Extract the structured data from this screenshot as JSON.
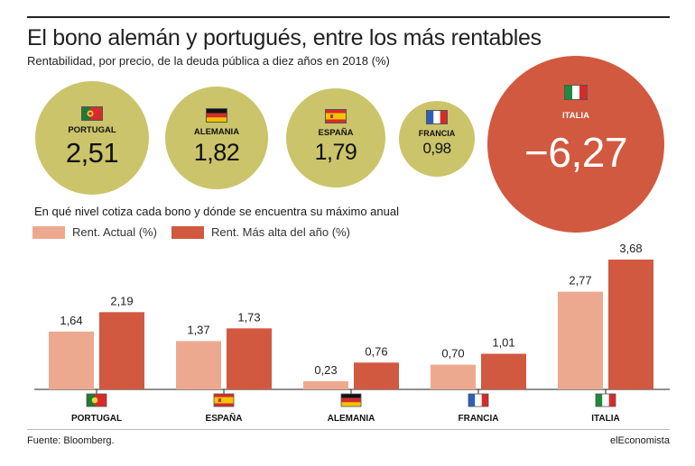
{
  "header": {
    "title": "El bono alemán y portugués, entre los más rentables",
    "subtitle": "Rentabilidad, por precio, de la deuda pública a diez años en 2018 (%)"
  },
  "bubbles": [
    {
      "country": "PORTUGAL",
      "value": "2,51",
      "flag": "portugal-flag"
    },
    {
      "country": "ALEMANIA",
      "value": "1,82",
      "flag": "germany-flag"
    },
    {
      "country": "ESPAÑA",
      "value": "1,79",
      "flag": "spain-flag"
    },
    {
      "country": "FRANCIA",
      "value": "0,98",
      "flag": "france-flag"
    },
    {
      "country": "ITALIA",
      "value": "−6,27",
      "flag": "italy-flag"
    }
  ],
  "section_title": "En qué nivel cotiza cada bono y dónde se encuentra su máximo anual",
  "legend": {
    "actual": "Rent. Actual (%)",
    "max": "Rent. Más alta del año (%)"
  },
  "colors": {
    "positive_bubble": "#cbc46a",
    "negative_bubble": "#d1593f",
    "actual_bar": "#eda98f",
    "max_bar": "#d1593f"
  },
  "chart_data": {
    "type": "bar",
    "categories": [
      "PORTUGAL",
      "ESPAÑA",
      "ALEMANIA",
      "FRANCIA",
      "ITALIA"
    ],
    "series": [
      {
        "name": "Rent. Actual (%)",
        "values": [
          1.64,
          1.37,
          0.23,
          0.7,
          2.77
        ],
        "labels": [
          "1,64",
          "1,37",
          "0,23",
          "0,70",
          "2,77"
        ]
      },
      {
        "name": "Rent. Más alta del año (%)",
        "values": [
          2.19,
          1.73,
          0.76,
          1.01,
          3.68
        ],
        "labels": [
          "2,19",
          "1,73",
          "0,76",
          "1,01",
          "3,68"
        ]
      }
    ],
    "category_flags": [
      "portugal-flag",
      "spain-flag",
      "germany-flag",
      "france-flag",
      "italy-flag"
    ],
    "ylim": [
      0,
      3.68
    ],
    "grid": false,
    "legend_position": "top-left"
  },
  "footer": {
    "source": "Fuente: Bloomberg.",
    "brand": "elEconomista"
  }
}
